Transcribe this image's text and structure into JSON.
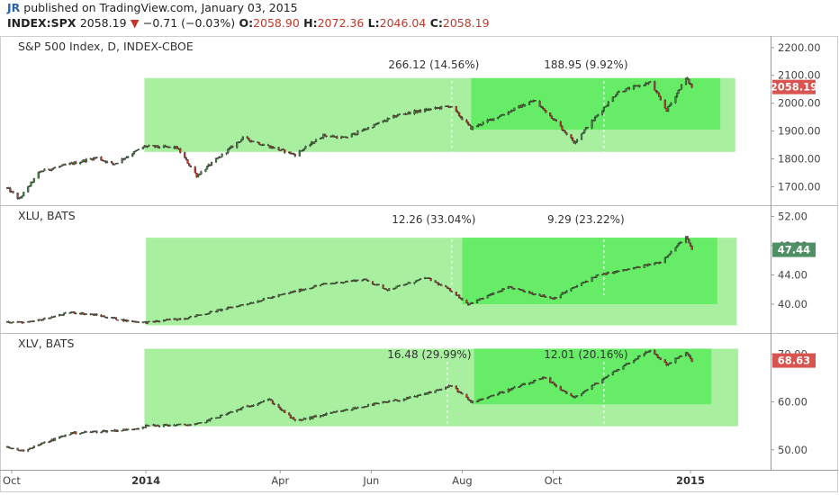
{
  "header": {
    "publisher_initials": "JR",
    "published_text": "published on TradingView.com, January 03, 2015",
    "symbol": "INDEX:SPX",
    "last": "2058.19",
    "change": "−0.71 (−0.03%)",
    "open_label": "O:",
    "open": "2058.90",
    "high_label": "H:",
    "high": "2072.36",
    "low_label": "L:",
    "low": "2046.04",
    "close_label": "C:",
    "close": "2058.19"
  },
  "colors": {
    "up": "#3e8a3e",
    "down": "#c0392b",
    "outline": "#2b2b2b",
    "outer_box": "#a8f0a0",
    "inner_box": "#66ec66",
    "spx_tag": "#d9534f",
    "xlu_tag": "#4e8f63",
    "xlv_tag": "#d9534f"
  },
  "chart_data": [
    {
      "type": "candlestick",
      "title": "S&P 500 Index, D, INDEX-CBOE",
      "yticks": [
        "1700.00",
        "1800.00",
        "1900.00",
        "2000.00",
        "2100.00",
        "2200.00"
      ],
      "ylim": [
        1640,
        2235
      ],
      "last_price": 2058.19,
      "last_price_label": "2058.19",
      "annotations": [
        {
          "text": "266.12 (14.56%)",
          "x": "2014-07-25"
        },
        {
          "text": "188.95 (9.92%)",
          "x": "2014-11-04"
        }
      ],
      "boxes": [
        {
          "kind": "outer",
          "x_start": "2013-12-31",
          "x_end": "2015-01-31",
          "y_low": 1825,
          "y_high": 2090
        },
        {
          "kind": "inner",
          "x_start": "2014-08-07",
          "x_end": "2015-01-21",
          "y_low": 1905,
          "y_high": 2090
        }
      ],
      "anchors": [
        [
          "2013-09-30",
          1695
        ],
        [
          "2013-10-08",
          1655
        ],
        [
          "2013-10-22",
          1755
        ],
        [
          "2013-11-29",
          1805
        ],
        [
          "2013-12-10",
          1780
        ],
        [
          "2013-12-31",
          1845
        ],
        [
          "2014-01-22",
          1840
        ],
        [
          "2014-02-04",
          1740
        ],
        [
          "2014-03-07",
          1875
        ],
        [
          "2014-04-11",
          1815
        ],
        [
          "2014-04-30",
          1885
        ],
        [
          "2014-05-14",
          1875
        ],
        [
          "2014-06-20",
          1960
        ],
        [
          "2014-07-24",
          1990
        ],
        [
          "2014-08-07",
          1910
        ],
        [
          "2014-09-18",
          2010
        ],
        [
          "2014-10-01",
          1945
        ],
        [
          "2014-10-15",
          1860
        ],
        [
          "2014-11-13",
          2040
        ],
        [
          "2014-12-05",
          2075
        ],
        [
          "2014-12-16",
          1975
        ],
        [
          "2014-12-29",
          2090
        ],
        [
          "2015-01-02",
          2058
        ]
      ]
    },
    {
      "type": "candlestick",
      "title": "XLU, BATS",
      "yticks": [
        "40.00",
        "44.00",
        "48.00",
        "52.00"
      ],
      "ylim": [
        36.3,
        53.3
      ],
      "last_price": 47.44,
      "last_price_label": "47.44",
      "annotations": [
        {
          "text": "12.26 (33.04%)",
          "x": "2014-07-25"
        },
        {
          "text": "9.29 (23.22%)",
          "x": "2014-11-04"
        }
      ],
      "boxes": [
        {
          "kind": "outer",
          "x_start": "2014-01-01",
          "x_end": "2015-02-01",
          "y_low": 37.1,
          "y_high": 49.1
        },
        {
          "kind": "inner",
          "x_start": "2014-08-01",
          "x_end": "2015-01-19",
          "y_low": 40.0,
          "y_high": 49.1
        }
      ],
      "anchors": [
        [
          "2013-09-30",
          37.6
        ],
        [
          "2013-10-15",
          37.5
        ],
        [
          "2013-11-12",
          38.9
        ],
        [
          "2013-11-29",
          38.5
        ],
        [
          "2013-12-20",
          37.7
        ],
        [
          "2014-01-02",
          37.5
        ],
        [
          "2014-01-30",
          38.2
        ],
        [
          "2014-03-10",
          40.1
        ],
        [
          "2014-04-29",
          42.7
        ],
        [
          "2014-05-27",
          43.4
        ],
        [
          "2014-06-12",
          42.0
        ],
        [
          "2014-07-08",
          43.6
        ],
        [
          "2014-07-25",
          41.8
        ],
        [
          "2014-08-05",
          40.0
        ],
        [
          "2014-09-01",
          42.3
        ],
        [
          "2014-10-01",
          40.8
        ],
        [
          "2014-10-30",
          43.9
        ],
        [
          "2014-11-28",
          45.1
        ],
        [
          "2014-12-12",
          45.8
        ],
        [
          "2014-12-29",
          49.2
        ],
        [
          "2015-01-02",
          47.44
        ]
      ]
    },
    {
      "type": "candlestick",
      "title": "XLV, BATS",
      "yticks": [
        "50.00",
        "60.00",
        "70.00"
      ],
      "ylim": [
        46.2,
        74.0
      ],
      "last_price": 68.63,
      "last_price_label": "68.63",
      "annotations": [
        {
          "text": "16.48 (29.99%)",
          "x": "2014-07-22"
        },
        {
          "text": "12.01 (20.16%)",
          "x": "2014-11-04"
        }
      ],
      "boxes": [
        {
          "kind": "outer",
          "x_start": "2013-12-31",
          "x_end": "2015-02-02",
          "y_low": 54.9,
          "y_high": 71.1
        },
        {
          "kind": "inner",
          "x_start": "2014-08-09",
          "x_end": "2015-01-15",
          "y_low": 59.5,
          "y_high": 71.1
        }
      ],
      "anchors": [
        [
          "2013-09-30",
          50.5
        ],
        [
          "2013-10-10",
          49.8
        ],
        [
          "2013-11-12",
          53.5
        ],
        [
          "2013-12-20",
          54.2
        ],
        [
          "2014-01-02",
          55.0
        ],
        [
          "2014-02-04",
          55.3
        ],
        [
          "2014-03-24",
          60.6
        ],
        [
          "2014-04-11",
          56.0
        ],
        [
          "2014-05-30",
          59.3
        ],
        [
          "2014-06-30",
          61.0
        ],
        [
          "2014-07-25",
          63.4
        ],
        [
          "2014-08-07",
          59.9
        ],
        [
          "2014-09-25",
          65.0
        ],
        [
          "2014-10-15",
          60.8
        ],
        [
          "2014-11-13",
          66.8
        ],
        [
          "2014-12-05",
          70.8
        ],
        [
          "2014-12-16",
          67.8
        ],
        [
          "2014-12-29",
          70.2
        ],
        [
          "2015-01-02",
          68.63
        ]
      ]
    }
  ],
  "xaxis": {
    "ticks": [
      {
        "label": "Oct",
        "date": "2013-10-03",
        "bold": false
      },
      {
        "label": "2014",
        "date": "2014-01-01",
        "bold": true
      },
      {
        "label": "Apr",
        "date": "2014-04-01",
        "bold": false
      },
      {
        "label": "Jun",
        "date": "2014-06-01",
        "bold": false
      },
      {
        "label": "Aug",
        "date": "2014-08-01",
        "bold": false
      },
      {
        "label": "Oct",
        "date": "2014-10-01",
        "bold": false
      },
      {
        "label": "2015",
        "date": "2015-01-01",
        "bold": true
      }
    ]
  }
}
